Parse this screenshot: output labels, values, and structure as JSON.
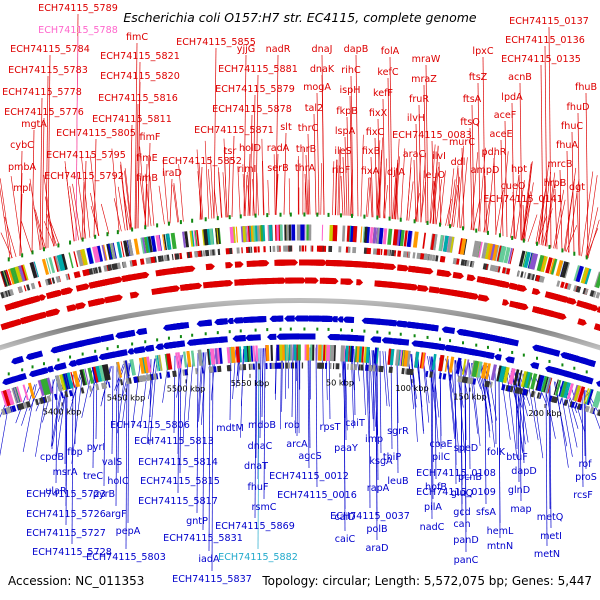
{
  "title": "Escherichia coli O157:H7 str. EC4115, complete genome",
  "footer": {
    "accession": "Accession: NC_011353",
    "summary": "Topology: circular; Length: 5,572,075 bp; Genes: 5,447"
  },
  "colors": {
    "forward": "#dd0000",
    "reverse": "#0000cc",
    "highlight_pink": "#ff66cc",
    "highlight_cyan": "#22aacc",
    "backbone": "#888888",
    "marker": "#118811"
  },
  "ticks": [
    "5400 kbp",
    "5450 kbp",
    "5500 kbp",
    "5550 kbp",
    "50 kbp",
    "100 kbp",
    "150 kbp",
    "200 kbp"
  ],
  "top_labels": [
    {
      "text": "ECH74115_5789",
      "color": "red"
    },
    {
      "text": "ECH74115_5788",
      "color": "pink"
    },
    {
      "text": "ECH74115_5784",
      "color": "red"
    },
    {
      "text": "ECH74115_5783",
      "color": "red"
    },
    {
      "text": "ECH74115_5778",
      "color": "red"
    },
    {
      "text": "ECH74115_5776",
      "color": "red"
    },
    {
      "text": "mgtA",
      "color": "red"
    },
    {
      "text": "cybC",
      "color": "red"
    },
    {
      "text": "pmbA",
      "color": "red"
    },
    {
      "text": "mpl",
      "color": "red"
    },
    {
      "text": "fimC",
      "color": "red"
    },
    {
      "text": "ECH74115_5821",
      "color": "red"
    },
    {
      "text": "ECH74115_5820",
      "color": "red"
    },
    {
      "text": "ECH74115_5816",
      "color": "red"
    },
    {
      "text": "ECH74115_5811",
      "color": "red"
    },
    {
      "text": "ECH74115_5805",
      "color": "red"
    },
    {
      "text": "fimF",
      "color": "red"
    },
    {
      "text": "ECH74115_5795",
      "color": "red"
    },
    {
      "text": "fimE",
      "color": "red"
    },
    {
      "text": "ECH74115_5792",
      "color": "red"
    },
    {
      "text": "fimB",
      "color": "red"
    },
    {
      "text": "iraD",
      "color": "red"
    },
    {
      "text": "ECH74115_5855",
      "color": "red"
    },
    {
      "text": "ECH74115_5852",
      "color": "red"
    },
    {
      "text": "yjjG",
      "color": "red"
    },
    {
      "text": "nadR",
      "color": "red"
    },
    {
      "text": "ECH74115_5881",
      "color": "red"
    },
    {
      "text": "ECH74115_5879",
      "color": "red"
    },
    {
      "text": "ECH74115_5878",
      "color": "red"
    },
    {
      "text": "ECH74115_5871",
      "color": "red"
    },
    {
      "text": "tsr",
      "color": "red"
    },
    {
      "text": "holD",
      "color": "red"
    },
    {
      "text": "rimI",
      "color": "red"
    },
    {
      "text": "radA",
      "color": "red"
    },
    {
      "text": "serB",
      "color": "red"
    },
    {
      "text": "slt",
      "color": "red"
    },
    {
      "text": "dnaJ",
      "color": "red"
    },
    {
      "text": "dnaK",
      "color": "red"
    },
    {
      "text": "mogA",
      "color": "red"
    },
    {
      "text": "tal2",
      "color": "red"
    },
    {
      "text": "thrC",
      "color": "red"
    },
    {
      "text": "thrB",
      "color": "red"
    },
    {
      "text": "thrA",
      "color": "red"
    },
    {
      "text": "dapB",
      "color": "red"
    },
    {
      "text": "rihC",
      "color": "red"
    },
    {
      "text": "ispH",
      "color": "red"
    },
    {
      "text": "fkpB",
      "color": "red"
    },
    {
      "text": "lspA",
      "color": "red"
    },
    {
      "text": "ileS",
      "color": "red"
    },
    {
      "text": "ribF",
      "color": "red"
    },
    {
      "text": "folA",
      "color": "red"
    },
    {
      "text": "kefC",
      "color": "red"
    },
    {
      "text": "kefF",
      "color": "red"
    },
    {
      "text": "fixX",
      "color": "red"
    },
    {
      "text": "fixC",
      "color": "red"
    },
    {
      "text": "fixB",
      "color": "red"
    },
    {
      "text": "fixA",
      "color": "red"
    },
    {
      "text": "djlA",
      "color": "red"
    },
    {
      "text": "araC",
      "color": "red"
    },
    {
      "text": "mraW",
      "color": "red"
    },
    {
      "text": "mraZ",
      "color": "red"
    },
    {
      "text": "fruR",
      "color": "red"
    },
    {
      "text": "ilvH",
      "color": "red"
    },
    {
      "text": "ECH74115_0083",
      "color": "red"
    },
    {
      "text": "ilvI",
      "color": "red"
    },
    {
      "text": "leuO",
      "color": "red"
    },
    {
      "text": "lpxC",
      "color": "red"
    },
    {
      "text": "ftsZ",
      "color": "red"
    },
    {
      "text": "ftsA",
      "color": "red"
    },
    {
      "text": "ftsQ",
      "color": "red"
    },
    {
      "text": "murC",
      "color": "red"
    },
    {
      "text": "ddl",
      "color": "red"
    },
    {
      "text": "ECH74115_0137",
      "color": "red"
    },
    {
      "text": "ECH74115_0136",
      "color": "red"
    },
    {
      "text": "ECH74115_0135",
      "color": "red"
    },
    {
      "text": "acnB",
      "color": "red"
    },
    {
      "text": "lpdA",
      "color": "red"
    },
    {
      "text": "aceF",
      "color": "red"
    },
    {
      "text": "aceE",
      "color": "red"
    },
    {
      "text": "pdhR",
      "color": "red"
    },
    {
      "text": "ampD",
      "color": "red"
    },
    {
      "text": "hpt",
      "color": "red"
    },
    {
      "text": "cueO",
      "color": "red"
    },
    {
      "text": "ECH74115_0141",
      "color": "red"
    },
    {
      "text": "fhuB",
      "color": "red"
    },
    {
      "text": "fhuD",
      "color": "red"
    },
    {
      "text": "fhuC",
      "color": "red"
    },
    {
      "text": "fhuA",
      "color": "red"
    },
    {
      "text": "mrcB",
      "color": "red"
    },
    {
      "text": "hrpB",
      "color": "red"
    },
    {
      "text": "dgt",
      "color": "red"
    }
  ],
  "bottom_labels": [
    {
      "text": "cpdB",
      "color": "blue"
    },
    {
      "text": "fbp",
      "color": "blue"
    },
    {
      "text": "pyrI",
      "color": "blue"
    },
    {
      "text": "msrA",
      "color": "blue"
    },
    {
      "text": "treC",
      "color": "blue"
    },
    {
      "text": "valS",
      "color": "blue"
    },
    {
      "text": "holC",
      "color": "blue"
    },
    {
      "text": "ulaR",
      "color": "blue"
    },
    {
      "text": "ECH74115_5723",
      "color": "blue"
    },
    {
      "text": "pyrB",
      "color": "blue"
    },
    {
      "text": "ECH74115_5726",
      "color": "blue"
    },
    {
      "text": "argF",
      "color": "blue"
    },
    {
      "text": "ECH74115_5727",
      "color": "blue"
    },
    {
      "text": "pepA",
      "color": "blue"
    },
    {
      "text": "ECH74115_5728",
      "color": "blue"
    },
    {
      "text": "ECH74115_5806",
      "color": "blue"
    },
    {
      "text": "ECH74115_5813",
      "color": "blue"
    },
    {
      "text": "ECH74115_5814",
      "color": "blue"
    },
    {
      "text": "ECH74115_5815",
      "color": "blue"
    },
    {
      "text": "ECH74115_5817",
      "color": "blue"
    },
    {
      "text": "gntP",
      "color": "blue"
    },
    {
      "text": "ECH74115_5831",
      "color": "blue"
    },
    {
      "text": "ECH74115_5803",
      "color": "blue"
    },
    {
      "text": "iadA",
      "color": "blue"
    },
    {
      "text": "ECH74115_5837",
      "color": "blue"
    },
    {
      "text": "mdtM",
      "color": "blue"
    },
    {
      "text": "mdoB",
      "color": "blue"
    },
    {
      "text": "dnaC",
      "color": "blue"
    },
    {
      "text": "dnaT",
      "color": "blue"
    },
    {
      "text": "fhuF",
      "color": "blue"
    },
    {
      "text": "rsmC",
      "color": "blue"
    },
    {
      "text": "ECH74115_5869",
      "color": "blue"
    },
    {
      "text": "ECH74115_5882",
      "color": "cyan"
    },
    {
      "text": "rob",
      "color": "blue"
    },
    {
      "text": "arcA",
      "color": "blue"
    },
    {
      "text": "agcS",
      "color": "blue"
    },
    {
      "text": "ECH74115_0012",
      "color": "blue"
    },
    {
      "text": "ECH74115_0016",
      "color": "blue"
    },
    {
      "text": "rpsT",
      "color": "blue"
    },
    {
      "text": "caiT",
      "color": "blue"
    },
    {
      "text": "paaY",
      "color": "blue"
    },
    {
      "text": "caiD",
      "color": "blue"
    },
    {
      "text": "caiC",
      "color": "blue"
    },
    {
      "text": "ECH74115_0037",
      "color": "blue"
    },
    {
      "text": "imp",
      "color": "blue"
    },
    {
      "text": "ksgA",
      "color": "blue"
    },
    {
      "text": "sgrR",
      "color": "blue"
    },
    {
      "text": "thiP",
      "color": "blue"
    },
    {
      "text": "rapA",
      "color": "blue"
    },
    {
      "text": "polB",
      "color": "blue"
    },
    {
      "text": "araD",
      "color": "blue"
    },
    {
      "text": "leuB",
      "color": "blue"
    },
    {
      "text": "coaE",
      "color": "blue"
    },
    {
      "text": "pilC",
      "color": "blue"
    },
    {
      "text": "hofB",
      "color": "blue"
    },
    {
      "text": "pilA",
      "color": "blue"
    },
    {
      "text": "nadC",
      "color": "blue"
    },
    {
      "text": "ECH74115_0108",
      "color": "blue"
    },
    {
      "text": "ECH74115_0109",
      "color": "blue"
    },
    {
      "text": "speD",
      "color": "blue"
    },
    {
      "text": "pcnB",
      "color": "blue"
    },
    {
      "text": "gluQ",
      "color": "blue"
    },
    {
      "text": "gcd",
      "color": "blue"
    },
    {
      "text": "can",
      "color": "blue"
    },
    {
      "text": "panD",
      "color": "blue"
    },
    {
      "text": "panC",
      "color": "blue"
    },
    {
      "text": "folK",
      "color": "blue"
    },
    {
      "text": "sfsA",
      "color": "blue"
    },
    {
      "text": "hemL",
      "color": "blue"
    },
    {
      "text": "mtnN",
      "color": "blue"
    },
    {
      "text": "btuF",
      "color": "blue"
    },
    {
      "text": "dapD",
      "color": "blue"
    },
    {
      "text": "glnD",
      "color": "blue"
    },
    {
      "text": "map",
      "color": "blue"
    },
    {
      "text": "rof",
      "color": "blue"
    },
    {
      "text": "proS",
      "color": "blue"
    },
    {
      "text": "rcsF",
      "color": "blue"
    },
    {
      "text": "metQ",
      "color": "blue"
    },
    {
      "text": "metI",
      "color": "blue"
    },
    {
      "text": "metN",
      "color": "blue"
    }
  ]
}
